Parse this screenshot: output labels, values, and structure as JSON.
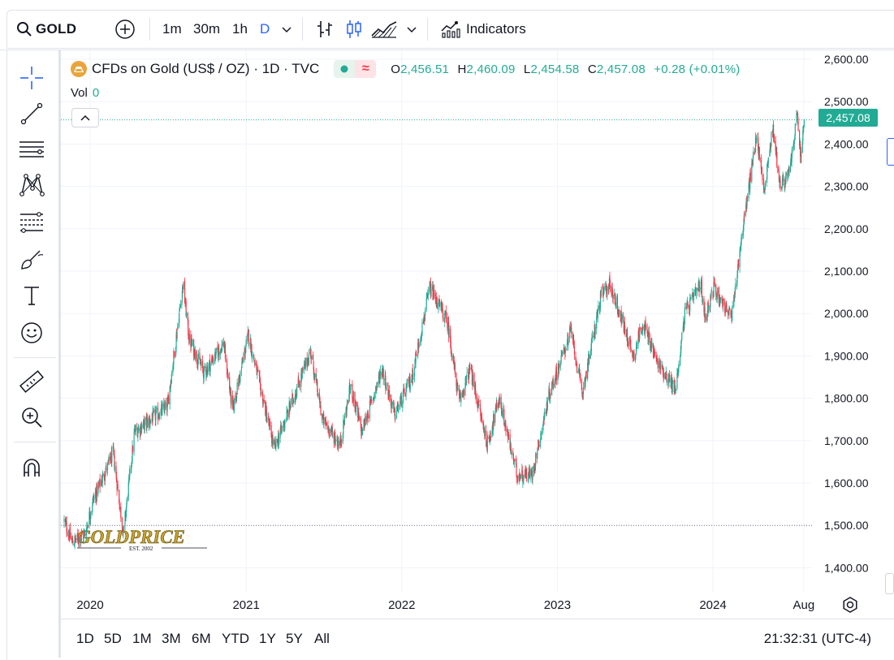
{
  "toolbar": {
    "symbol": "GOLD",
    "add_symbol_icon": "plus-circle-icon",
    "intervals": [
      "1m",
      "30m",
      "1h",
      "D"
    ],
    "active_interval": "D",
    "indicators_label": "Indicators"
  },
  "left_tools": [
    "crosshair-icon",
    "trend-line-icon",
    "horizontal-lines-icon",
    "pattern-icon",
    "fib-icon",
    "brush-icon",
    "text-icon",
    "emoji-icon",
    "ruler-icon",
    "zoom-in-icon",
    "magnet-icon"
  ],
  "legend": {
    "title": "CFDs on Gold (US$ / OZ) · 1D · TVC",
    "status_market": "●",
    "status_delayed": "≈",
    "ohlc": [
      {
        "key": "O",
        "value": "2,456.51"
      },
      {
        "key": "H",
        "value": "2,460.09"
      },
      {
        "key": "L",
        "value": "2,454.58"
      },
      {
        "key": "C",
        "value": "2,457.08"
      }
    ],
    "change": "+0.28 (+0.01%)",
    "vol_label": "Vol",
    "vol_value": "0"
  },
  "price_axis": {
    "labels": [
      "2,600.00",
      "2,500.00",
      "2,400.00",
      "2,300.00",
      "2,200.00",
      "2,100.00",
      "2,000.00",
      "1,900.00",
      "1,800.00",
      "1,700.00",
      "1,600.00",
      "1,500.00",
      "1,400.00"
    ],
    "current_price": "2,457.08"
  },
  "time_axis": {
    "labels": [
      "2020",
      "2021",
      "2022",
      "2023",
      "2024",
      "Aug"
    ]
  },
  "watermark": {
    "text": "GOLDPRICE",
    "sub": "EST. 2002"
  },
  "bottom": {
    "ranges": [
      "1D",
      "5D",
      "1M",
      "3M",
      "6M",
      "YTD",
      "1Y",
      "5Y",
      "All"
    ],
    "clock": "21:32:31 (UTC-4)"
  },
  "colors": {
    "up": "#22ab94",
    "down": "#f23645",
    "accent": "#2962ff",
    "grid": "#f0f3fa"
  },
  "chart_data": {
    "type": "candlestick",
    "interval": "1D",
    "ylim": [
      1380,
      2620
    ],
    "x_range": [
      "2019-11",
      "2024-08"
    ],
    "price_levels": [
      1500,
      2457.08
    ],
    "path_anchors": [
      {
        "t": "2019-11-01",
        "price": 1510
      },
      {
        "t": "2019-11-20",
        "price": 1460
      },
      {
        "t": "2019-12-20",
        "price": 1480
      },
      {
        "t": "2020-01-08",
        "price": 1560
      },
      {
        "t": "2020-02-24",
        "price": 1670
      },
      {
        "t": "2020-03-19",
        "price": 1480
      },
      {
        "t": "2020-04-14",
        "price": 1720
      },
      {
        "t": "2020-06-30",
        "price": 1780
      },
      {
        "t": "2020-08-06",
        "price": 2070
      },
      {
        "t": "2020-08-20",
        "price": 1940
      },
      {
        "t": "2020-09-24",
        "price": 1860
      },
      {
        "t": "2020-11-09",
        "price": 1930
      },
      {
        "t": "2020-11-30",
        "price": 1770
      },
      {
        "t": "2021-01-06",
        "price": 1950
      },
      {
        "t": "2021-03-08",
        "price": 1680
      },
      {
        "t": "2021-06-01",
        "price": 1910
      },
      {
        "t": "2021-06-29",
        "price": 1750
      },
      {
        "t": "2021-08-09",
        "price": 1690
      },
      {
        "t": "2021-09-03",
        "price": 1830
      },
      {
        "t": "2021-09-29",
        "price": 1720
      },
      {
        "t": "2021-11-16",
        "price": 1870
      },
      {
        "t": "2021-12-15",
        "price": 1760
      },
      {
        "t": "2022-01-25",
        "price": 1850
      },
      {
        "t": "2022-03-08",
        "price": 2060
      },
      {
        "t": "2022-04-18",
        "price": 1980
      },
      {
        "t": "2022-05-16",
        "price": 1790
      },
      {
        "t": "2022-06-10",
        "price": 1870
      },
      {
        "t": "2022-07-21",
        "price": 1690
      },
      {
        "t": "2022-08-17",
        "price": 1800
      },
      {
        "t": "2022-09-28",
        "price": 1620
      },
      {
        "t": "2022-11-03",
        "price": 1620
      },
      {
        "t": "2022-12-13",
        "price": 1810
      },
      {
        "t": "2023-02-02",
        "price": 1960
      },
      {
        "t": "2023-02-28",
        "price": 1810
      },
      {
        "t": "2023-04-13",
        "price": 2040
      },
      {
        "t": "2023-05-04",
        "price": 2070
      },
      {
        "t": "2023-06-29",
        "price": 1900
      },
      {
        "t": "2023-07-20",
        "price": 1980
      },
      {
        "t": "2023-08-21",
        "price": 1890
      },
      {
        "t": "2023-10-05",
        "price": 1820
      },
      {
        "t": "2023-10-27",
        "price": 2000
      },
      {
        "t": "2023-12-04",
        "price": 2070
      },
      {
        "t": "2023-12-13",
        "price": 1990
      },
      {
        "t": "2024-01-03",
        "price": 2060
      },
      {
        "t": "2024-02-14",
        "price": 1990
      },
      {
        "t": "2024-03-08",
        "price": 2180
      },
      {
        "t": "2024-04-12",
        "price": 2420
      },
      {
        "t": "2024-05-01",
        "price": 2290
      },
      {
        "t": "2024-05-20",
        "price": 2440
      },
      {
        "t": "2024-06-07",
        "price": 2300
      },
      {
        "t": "2024-06-28",
        "price": 2330
      },
      {
        "t": "2024-07-17",
        "price": 2470
      },
      {
        "t": "2024-07-25",
        "price": 2360
      },
      {
        "t": "2024-08-02",
        "price": 2460
      }
    ]
  }
}
